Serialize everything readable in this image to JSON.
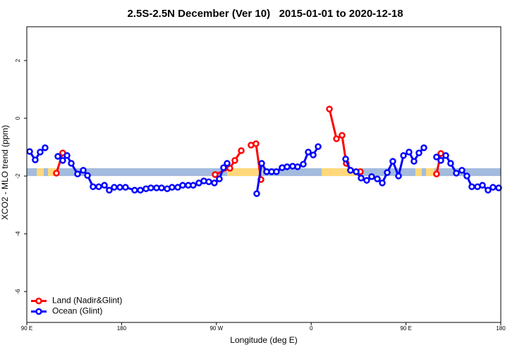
{
  "chart_data": {
    "type": "line",
    "title": "2.5S-2.5N December (Ver 10)   2015-01-01 to 2020-12-18",
    "x_label": "Longitude (deg E)",
    "y_label": "XCO2 - MLO trend (ppm)",
    "xlim": [
      90,
      540
    ],
    "ylim": [
      -7.07,
      3.17
    ],
    "xticks": [
      {
        "value": 90,
        "label": "90 E"
      },
      180,
      {
        "value": 270,
        "label": "90 W"
      },
      {
        "value": 360,
        "label": "0"
      },
      {
        "value": 450,
        "label": "90 E"
      },
      {
        "value": 540,
        "label": "180"
      }
    ],
    "yticks": [
      -6,
      -4,
      -2,
      0,
      2
    ],
    "legend": "bottom-left",
    "band_ylim": [
      -2.0,
      -1.73
    ],
    "band_color": "#a3bbdd",
    "land_color": "#fed87a",
    "land_spans": [
      [
        99.4,
        106.1
      ],
      [
        110.1,
        118.1
      ],
      [
        280.2,
        313.6
      ],
      [
        369.9,
        407.4
      ],
      [
        458.9,
        465.0
      ],
      [
        469.0,
        477.0
      ]
    ],
    "series": [
      {
        "name": "Land (Nadir&Glint)",
        "color": "#ff0000",
        "x": [
          118.1,
          124.1,
          null,
          268.8,
          282.8,
          287.5,
          293.6,
          null,
          302.9,
          307.6,
          312.3,
          null,
          377.3,
          384.0,
          389.3,
          393.3,
          397.3,
          406.7,
          null,
          479.0,
          483.1
        ],
        "values": [
          -1.9,
          -1.2,
          null,
          -1.95,
          -1.73,
          -1.46,
          -1.12,
          null,
          -0.93,
          -0.88,
          -2.12,
          null,
          0.32,
          -0.71,
          -0.59,
          -1.56,
          -1.8,
          -1.85,
          null,
          -1.93,
          -1.22
        ]
      },
      {
        "name": "Ocean (Glint)",
        "color": "#0000ff",
        "x": [
          92.7,
          98.0,
          102.7,
          107.4,
          null,
          119.5,
          124.1,
          128.2,
          132.2,
          138.2,
          143.6,
          147.6,
          152.9,
          158.3,
          163.7,
          168.3,
          173.0,
          178.4,
          183.7,
          192.4,
          197.8,
          203.2,
          207.8,
          213.2,
          217.9,
          223.3,
          227.9,
          233.3,
          238.0,
          243.3,
          248.0,
          253.4,
          258.1,
          262.8,
          268.1,
          272.8,
          276.8,
          280.2,
          null,
          308.3,
          313.0,
          317.7,
          322.4,
          327.0,
          332.4,
          337.1,
          342.4,
          347.1,
          352.5,
          357.2,
          361.9,
          366.6,
          null,
          392.7,
          397.3,
          402.7,
          407.4,
          412.7,
          417.4,
          422.8,
          427.5,
          432.2,
          437.5,
          442.9,
          447.6,
          452.9,
          457.6,
          462.3,
          467.0,
          null,
          479.0,
          483.1,
          487.8,
          492.4,
          497.8,
          503.1,
          507.8,
          512.5,
          517.9,
          522.6,
          527.9,
          532.6,
          538.0
        ],
        "values": [
          -1.15,
          -1.44,
          -1.17,
          -1.02,
          null,
          -1.32,
          -1.46,
          -1.29,
          -1.56,
          -1.93,
          -1.8,
          -1.98,
          -2.37,
          -2.37,
          -2.32,
          -2.49,
          -2.39,
          -2.39,
          -2.39,
          -2.49,
          -2.49,
          -2.44,
          -2.41,
          -2.41,
          -2.41,
          -2.44,
          -2.39,
          -2.39,
          -2.32,
          -2.32,
          -2.32,
          -2.24,
          -2.17,
          -2.2,
          -2.24,
          -2.1,
          -1.71,
          -1.56,
          null,
          -2.61,
          -1.56,
          -1.85,
          -1.85,
          -1.85,
          -1.71,
          -1.68,
          -1.66,
          -1.68,
          -1.59,
          -1.17,
          -1.27,
          -0.98,
          null,
          -1.41,
          -1.8,
          -1.85,
          -2.07,
          -2.15,
          -2.02,
          -2.1,
          -2.24,
          -1.88,
          -1.49,
          -2.0,
          -1.29,
          -1.17,
          -1.49,
          -1.2,
          -1.02,
          null,
          -1.34,
          -1.46,
          -1.29,
          -1.56,
          -1.9,
          -1.8,
          -2.0,
          -2.37,
          -2.37,
          -2.32,
          -2.49,
          -2.39,
          -2.41
        ]
      }
    ]
  }
}
